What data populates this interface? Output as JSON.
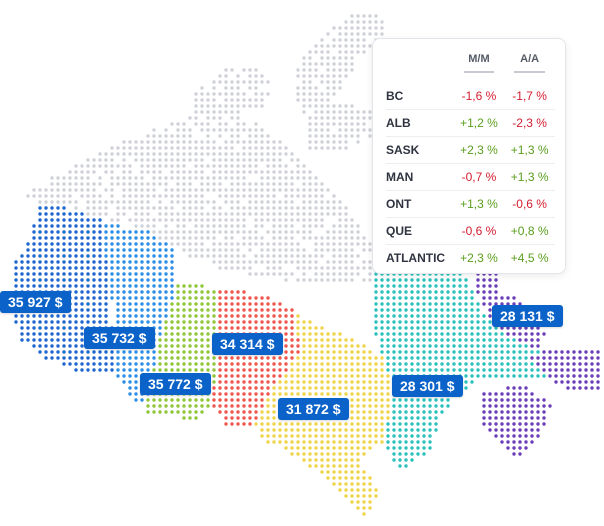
{
  "colors": {
    "north": "#cfd2d8",
    "bc": "#1f66cf",
    "alb": "#2e8fe6",
    "sask": "#90c63a",
    "man": "#f0564f",
    "ont": "#f0d44a",
    "que": "#2bc2bd",
    "atlantic": "#6a3fb8",
    "badge": "#0b63c9",
    "positive": "#5a9e1d",
    "negative": "#d41c2f"
  },
  "regions": [
    {
      "key": "bc",
      "name": "BC",
      "price": "35 927 $"
    },
    {
      "key": "alb",
      "name": "ALB",
      "price": "35 732 $"
    },
    {
      "key": "sask",
      "name": "SASK",
      "price": "35 772 $"
    },
    {
      "key": "man",
      "name": "MAN",
      "price": "34 314 $"
    },
    {
      "key": "ont",
      "name": "ONT",
      "price": "31 872 $"
    },
    {
      "key": "que",
      "name": "QUE",
      "price": "28 301 $"
    },
    {
      "key": "atlantic",
      "name": "ATLANTIC",
      "price": "28 131 $"
    }
  ],
  "table": {
    "headers": [
      "M/M",
      "A/A"
    ],
    "rows": [
      {
        "region": "BC",
        "mm": "-1,6 %",
        "aa": "-1,7 %"
      },
      {
        "region": "ALB",
        "mm": "+1,2 %",
        "aa": "-2,3 %"
      },
      {
        "region": "SASK",
        "mm": "+2,3 %",
        "aa": "+1,3 %"
      },
      {
        "region": "MAN",
        "mm": "-0,7 %",
        "aa": "+1,3 %"
      },
      {
        "region": "ONT",
        "mm": "+1,3 %",
        "aa": "-0,6 %"
      },
      {
        "region": "QUE",
        "mm": "-0,6 %",
        "aa": "+0,8 %"
      },
      {
        "region": "ATLANTIC",
        "mm": "+2,3 %",
        "aa": "+4,5 %"
      }
    ]
  }
}
